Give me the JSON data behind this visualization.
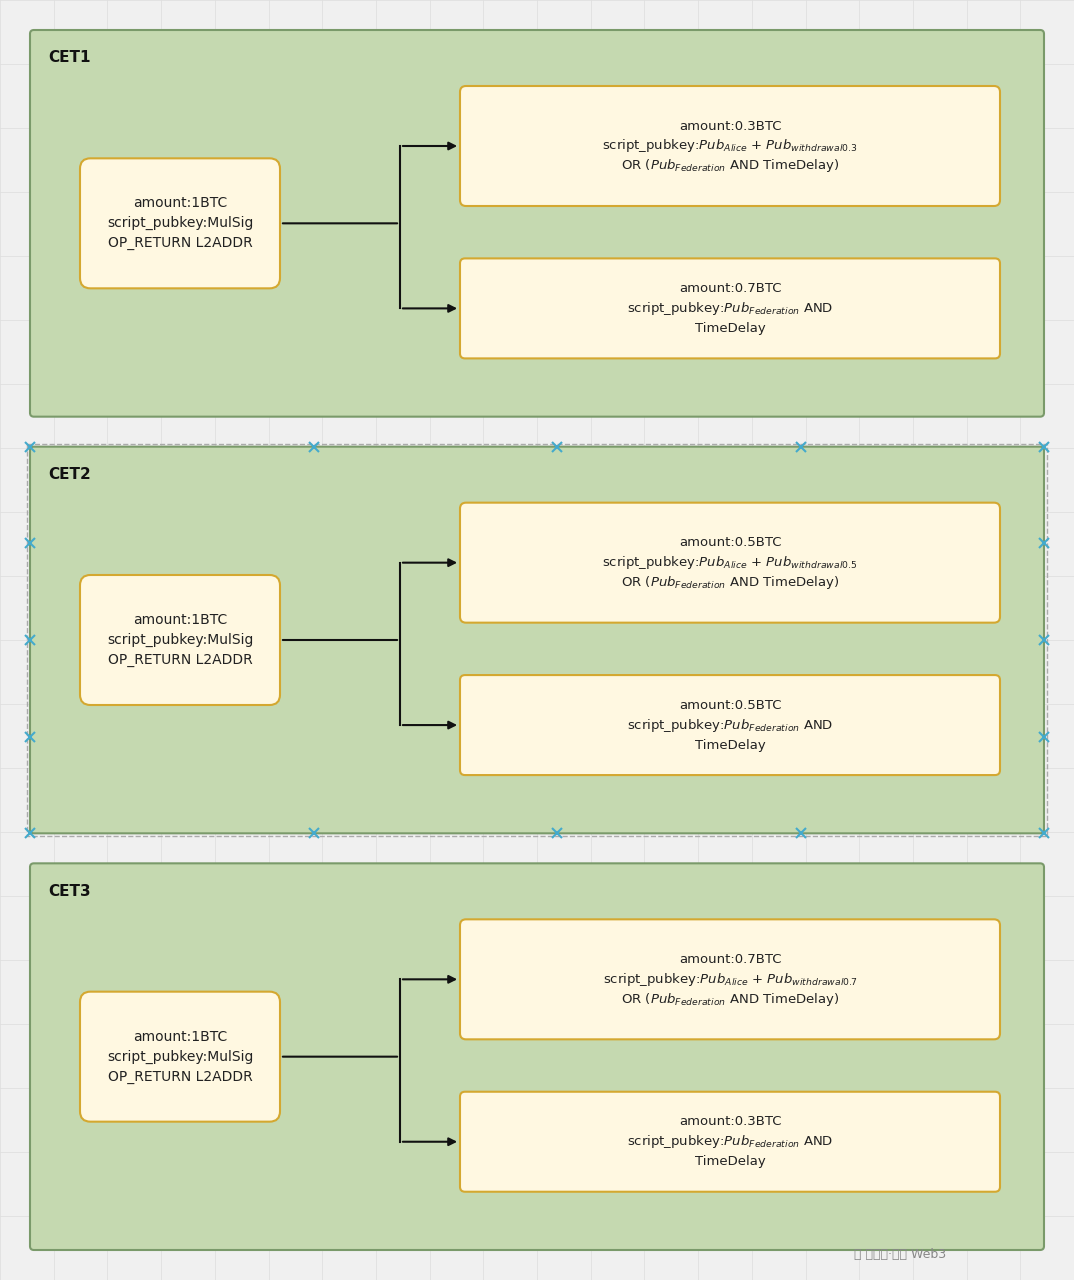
{
  "background_color": "#f0f0f0",
  "grid_color": "#dddddd",
  "panel_bg": "#c5d9b0",
  "panel_border": "#7a9a6a",
  "box_bg": "#fff8e1",
  "box_border": "#d4a830",
  "panels": [
    {
      "label": "CET1",
      "top_box": {
        "lines": [
          "amount:0.3BTC",
          "script_pubkey:$\\mathit{Pub}_{Alice}$ + $\\mathit{Pub}_{withdrawal0.3}$",
          "OR ($\\mathit{Pub}_{Federation}$ AND TimeDelay)"
        ]
      },
      "bottom_box": {
        "lines": [
          "amount:0.7BTC",
          "script_pubkey:$\\mathit{Pub}_{Federation}$ AND",
          "TimeDelay"
        ]
      }
    },
    {
      "label": "CET2",
      "top_box": {
        "lines": [
          "amount:0.5BTC",
          "script_pubkey:$\\mathit{Pub}_{Alice}$ + $\\mathit{Pub}_{withdrawal0.5}$",
          "OR ($\\mathit{Pub}_{Federation}$ AND TimeDelay)"
        ]
      },
      "bottom_box": {
        "lines": [
          "amount:0.5BTC",
          "script_pubkey:$\\mathit{Pub}_{Federation}$ AND",
          "TimeDelay"
        ]
      }
    },
    {
      "label": "CET3",
      "top_box": {
        "lines": [
          "amount:0.7BTC",
          "script_pubkey:$\\mathit{Pub}_{Alice}$ + $\\mathit{Pub}_{withdrawal0.7}$",
          "OR ($\\mathit{Pub}_{Federation}$ AND TimeDelay)"
        ]
      },
      "bottom_box": {
        "lines": [
          "amount:0.3BTC",
          "script_pubkey:$\\mathit{Pub}_{Federation}$ AND",
          "TimeDelay"
        ]
      }
    }
  ],
  "left_box_lines": [
    "amount:1BTC",
    "script_pubkey:MulSig",
    "OP_RETURN L2ADDR"
  ],
  "watermark": "公众号·极客 Web3"
}
